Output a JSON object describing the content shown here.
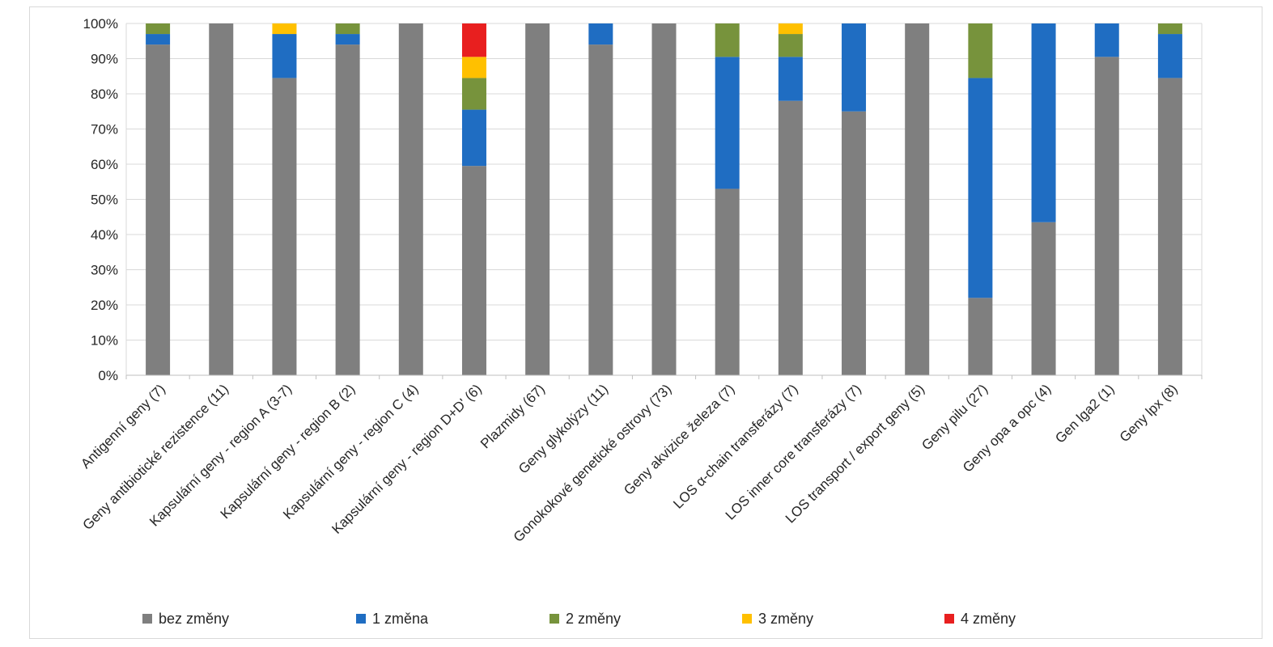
{
  "chart_data": {
    "type": "bar",
    "stacked": true,
    "percent": true,
    "title": "",
    "xlabel": "",
    "ylabel": "",
    "ylim": [
      0,
      100
    ],
    "yticks": [
      "0%",
      "10%",
      "20%",
      "30%",
      "40%",
      "50%",
      "60%",
      "70%",
      "80%",
      "90%",
      "100%"
    ],
    "grid": true,
    "legend_position": "bottom",
    "categories": [
      "Antigenní geny (7)",
      "Geny antibiotické rezistence (11)",
      "Kapsulární geny - region A (3-7)",
      "Kapsulární geny - region B (2)",
      "Kapsulární geny - region C (4)",
      "Kapsulární geny - region D+D' (6)",
      "Plazmidy (67)",
      "Geny glykolýzy (11)",
      "Gonokokové genetické ostrovy (73)",
      "Geny akvizice železa (7)",
      "LOS α-chain transferázy (7)",
      "LOS inner core transferázy (7)",
      "LOS transport / export geny (5)",
      "Geny pilu (27)",
      "Geny opa a opc (4)",
      "Gen lga2 (1)",
      "Geny lpx (8)"
    ],
    "series": [
      {
        "name": "bez změny",
        "color": "#7f7f7f",
        "values": [
          94,
          100,
          84.5,
          94,
          100,
          59.5,
          100,
          94,
          100,
          53,
          78,
          75,
          100,
          22,
          43.5,
          90.5,
          84.5
        ]
      },
      {
        "name": "1 změna",
        "color": "#1f6dc2",
        "values": [
          3,
          0,
          12.5,
          3,
          0,
          16,
          0,
          6,
          0,
          37.5,
          12.5,
          25,
          0,
          62.5,
          56.5,
          9.5,
          12.5
        ]
      },
      {
        "name": "2 změny",
        "color": "#77933c",
        "values": [
          3,
          0,
          0,
          3,
          0,
          9,
          0,
          0,
          0,
          9.5,
          6.5,
          0,
          0,
          15.5,
          0,
          0,
          3
        ]
      },
      {
        "name": "3 změny",
        "color": "#ffc000",
        "values": [
          0,
          0,
          3,
          0,
          0,
          6,
          0,
          0,
          0,
          0,
          3,
          0,
          0,
          0,
          0,
          0,
          0
        ]
      },
      {
        "name": "4 změny",
        "color": "#e81f1f",
        "values": [
          0,
          0,
          0,
          0,
          0,
          9.5,
          0,
          0,
          0,
          0,
          0,
          0,
          0,
          0,
          0,
          0,
          0
        ]
      }
    ]
  }
}
